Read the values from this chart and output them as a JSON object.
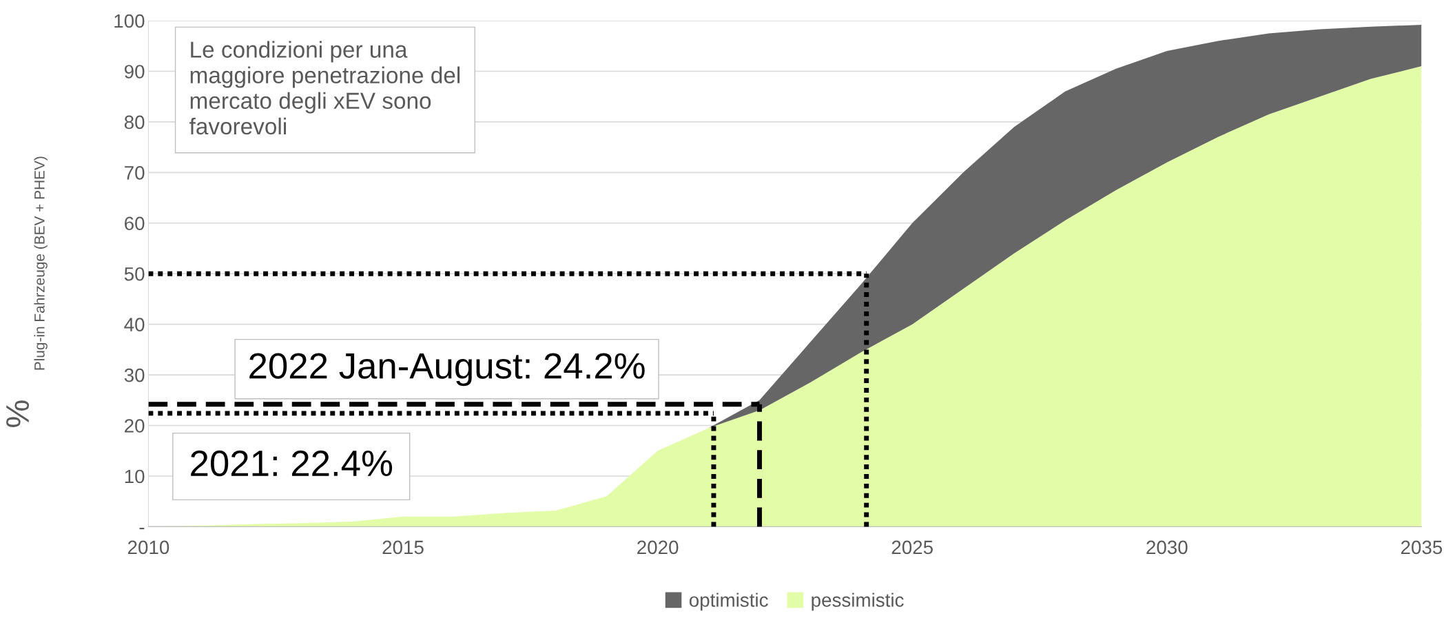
{
  "chart_data": {
    "type": "area",
    "stacked": true,
    "ylabel": "% Plug-in Fahrzeuge (BEV + PHEV)",
    "x": [
      2010,
      2011,
      2012,
      2013,
      2014,
      2015,
      2016,
      2017,
      2018,
      2019,
      2020,
      2021,
      2022,
      2023,
      2024,
      2025,
      2026,
      2027,
      2028,
      2029,
      2030,
      2031,
      2032,
      2033,
      2034,
      2035
    ],
    "series": [
      {
        "name": "pessimistic",
        "color": "#e3fca8",
        "values": [
          0,
          0.2,
          0.5,
          0.7,
          1,
          2,
          2,
          2.7,
          3.2,
          6,
          15,
          19.5,
          23,
          28.5,
          34.5,
          40,
          47,
          54,
          60.5,
          66.5,
          72,
          77,
          81.5,
          85,
          88.5,
          91
        ]
      },
      {
        "name": "optimistic",
        "color": "#666666",
        "values": [
          0,
          0,
          0,
          0,
          0,
          0,
          0,
          0,
          0,
          0,
          0,
          0,
          2,
          8,
          13.5,
          20,
          23,
          25,
          25.5,
          24,
          22,
          19,
          16,
          13.3,
          10.3,
          8.2
        ]
      }
    ],
    "xlim": [
      2010,
      2035
    ],
    "xticks": [
      2010,
      2015,
      2020,
      2025,
      2030,
      2035
    ],
    "ylim": [
      0,
      100
    ],
    "yticks": [
      {
        "value": 0,
        "label": "-"
      },
      10,
      20,
      30,
      40,
      50,
      60,
      70,
      80,
      90,
      100
    ],
    "grid": "y",
    "legend": "bottom",
    "ref_lines": [
      {
        "axis": "y",
        "value": 50,
        "line_style": "dotted",
        "color": "#000000"
      },
      {
        "axis": "x",
        "value": 2024.1,
        "line_style": "dotted",
        "color": "#000000"
      },
      {
        "axis": "y",
        "value": 24.2,
        "line_style": "dashed",
        "color": "#000000",
        "label": "2022 Jan-August: 24.2%"
      },
      {
        "axis": "x",
        "value": 2022,
        "line_style": "dashed",
        "color": "#000000"
      },
      {
        "axis": "y",
        "value": 22.4,
        "line_style": "dotted",
        "color": "#000000",
        "label": "2021: 22.4%"
      },
      {
        "axis": "x",
        "value": 2021.1,
        "line_style": "dotted",
        "color": "#000000"
      }
    ],
    "annotations": [
      "Le condizioni per una\nmaggiore penetrazione del\nmercato degli xEV sono\nfavorevoli"
    ]
  }
}
